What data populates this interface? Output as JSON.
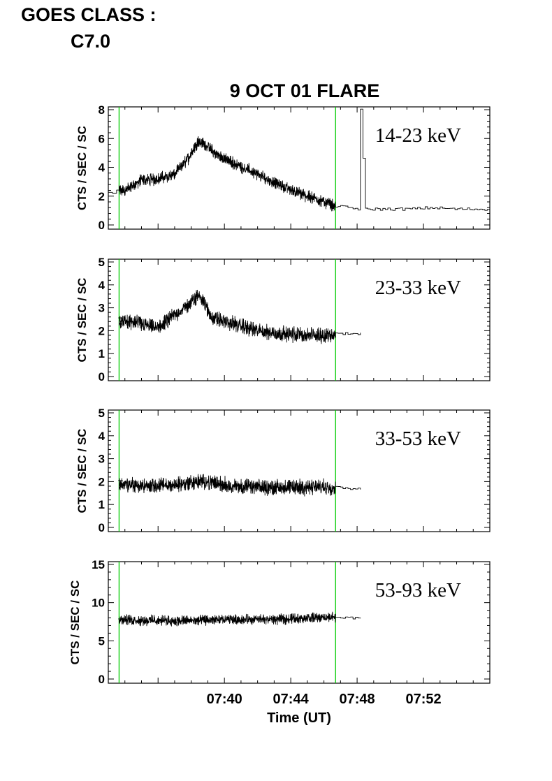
{
  "header": {
    "goes_label": "GOES CLASS :",
    "goes_class": "C7.0"
  },
  "chart_data": {
    "type": "line",
    "title": "9 OCT 01 FLARE",
    "xlabel": "Time (UT)",
    "x_tick_labels": [
      "07:40",
      "07:44",
      "07:48",
      "07:52"
    ],
    "x_tick_values_min": [
      460,
      464,
      468,
      472
    ],
    "xlim_min": [
      453.0,
      476.0
    ],
    "marker_lines_min": [
      453.65,
      466.7
    ],
    "marker_color": "#00cc00",
    "line_color": "#000000",
    "panels": [
      {
        "band": "14-23 keV",
        "ylabel": "CTS / SEC / SC",
        "ylim": [
          0,
          8
        ],
        "yticks": [
          0,
          2,
          4,
          6,
          8
        ],
        "series": {
          "x": [
            453.0,
            453.6,
            454.0,
            455.0,
            456.0,
            457.0,
            457.8,
            458.4,
            458.8,
            459.5,
            460.5,
            461.5,
            462.5,
            463.5,
            464.5,
            465.5,
            466.3,
            466.7,
            467.5,
            468.1,
            468.2,
            468.3,
            468.4,
            468.5,
            469.5,
            471.0,
            472.5,
            474.0,
            476.0
          ],
          "y": [
            2.2,
            2.4,
            2.4,
            3.1,
            3.2,
            3.5,
            4.6,
            5.8,
            5.6,
            4.9,
            4.3,
            3.8,
            3.2,
            2.7,
            2.2,
            1.8,
            1.5,
            1.3,
            1.2,
            1.1,
            8.0,
            8.0,
            1.1,
            1.1,
            1.1,
            1.1,
            1.2,
            1.1,
            1.1
          ]
        }
      },
      {
        "band": "23-33 keV",
        "ylabel": "CTS / SEC / SC",
        "ylim": [
          0,
          5
        ],
        "yticks": [
          0,
          1,
          2,
          3,
          4,
          5
        ],
        "series": {
          "x": [
            453.6,
            454.0,
            455.0,
            456.0,
            457.0,
            457.8,
            458.5,
            459.2,
            460.0,
            461.0,
            462.0,
            463.0,
            464.0,
            465.0,
            466.0,
            466.7,
            467.5,
            468.2
          ],
          "y": [
            2.4,
            2.4,
            2.3,
            2.1,
            2.7,
            3.1,
            3.6,
            2.6,
            2.4,
            2.2,
            2.0,
            1.9,
            1.85,
            1.8,
            1.8,
            1.85,
            1.9,
            1.85
          ]
        }
      },
      {
        "band": "33-53 keV",
        "ylabel": "CTS / SEC / SC",
        "ylim": [
          0,
          5
        ],
        "yticks": [
          0,
          1,
          2,
          3,
          4,
          5
        ],
        "series": {
          "x": [
            453.6,
            454.0,
            455.5,
            457.0,
            458.5,
            459.3,
            460.5,
            462.0,
            463.5,
            465.0,
            466.7,
            467.5,
            468.2
          ],
          "y": [
            1.9,
            1.85,
            1.8,
            1.85,
            2.0,
            1.95,
            1.8,
            1.75,
            1.75,
            1.75,
            1.75,
            1.7,
            1.7
          ]
        }
      },
      {
        "band": "53-93 keV",
        "ylabel": "CTS / SEC / SC",
        "ylim": [
          0,
          15
        ],
        "yticks": [
          0,
          5,
          10,
          15
        ],
        "series": {
          "x": [
            453.6,
            455.0,
            457.0,
            459.0,
            461.0,
            463.0,
            465.0,
            466.7,
            467.5,
            468.2
          ],
          "y": [
            7.8,
            7.7,
            7.6,
            7.7,
            7.8,
            7.8,
            8.0,
            8.1,
            8.0,
            8.1
          ]
        }
      }
    ]
  }
}
